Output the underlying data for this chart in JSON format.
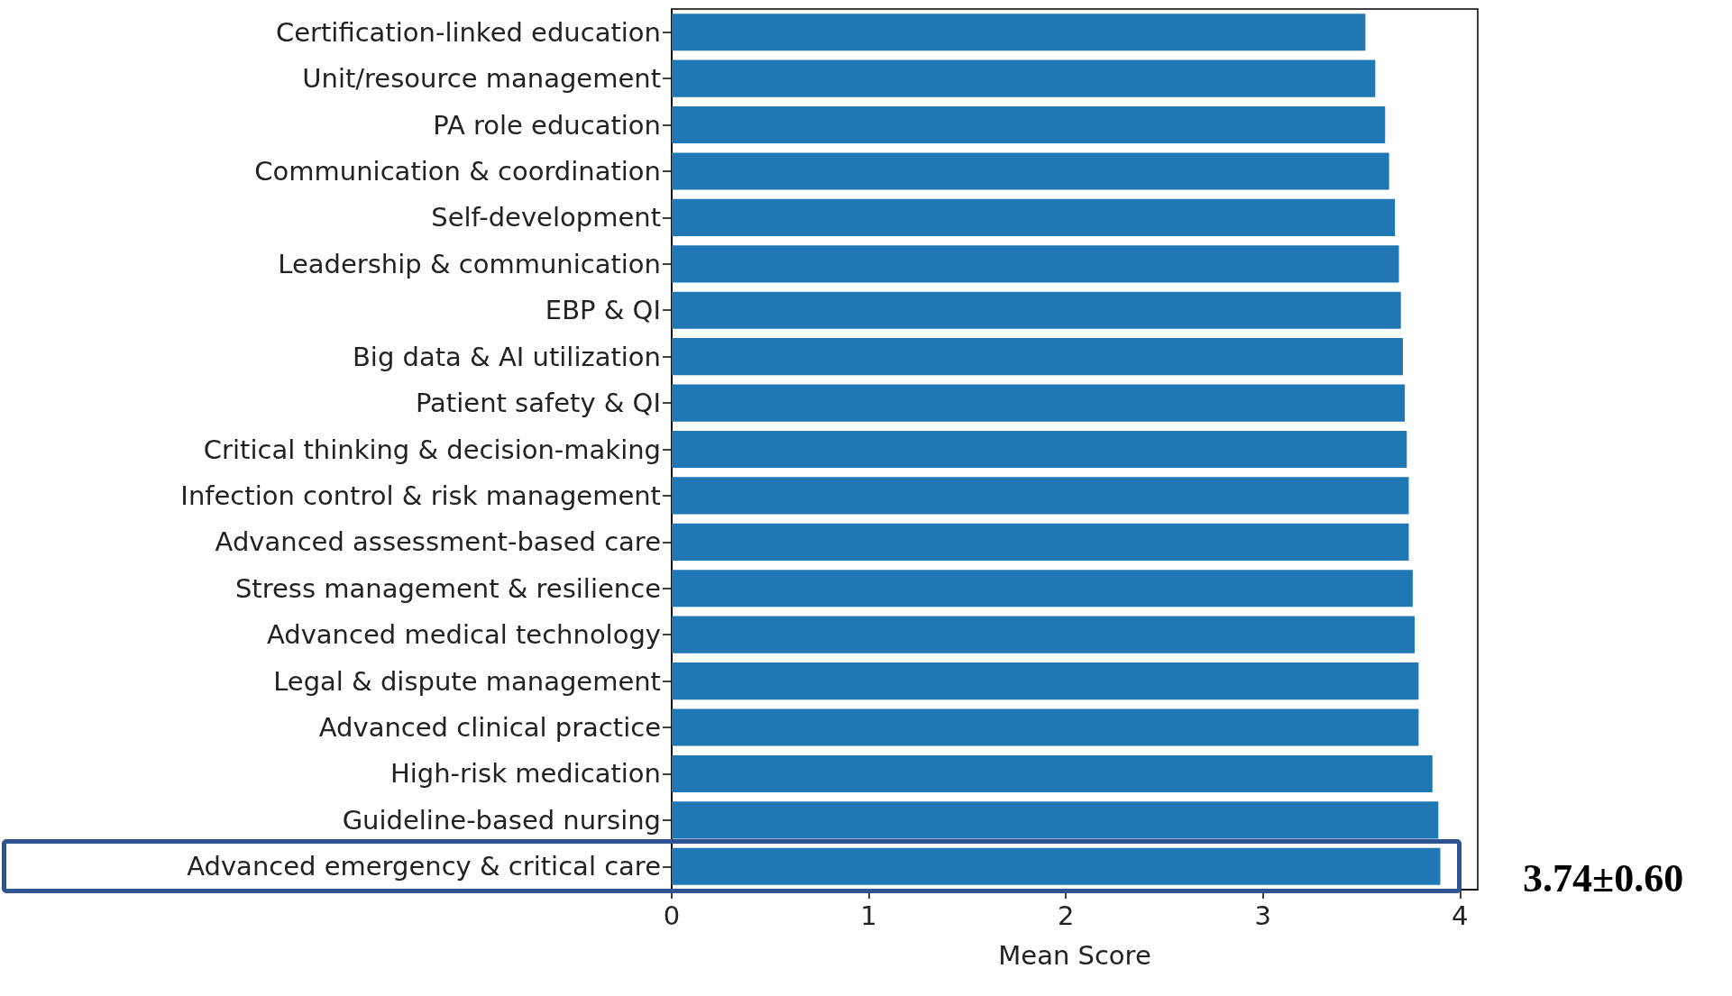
{
  "chart_data": {
    "type": "bar",
    "orientation": "horizontal",
    "xlabel": "Mean Score",
    "categories": [
      "Certification-linked education",
      "Unit/resource management",
      "PA role education",
      "Communication & coordination",
      "Self-development",
      "Leadership & communication",
      "EBP & QI",
      "Big data & AI utilization",
      "Patient safety & QI",
      "Critical thinking & decision-making",
      "Infection control & risk management",
      "Advanced assessment-based care",
      "Stress management & resilience",
      "Advanced medical technology",
      "Legal & dispute management",
      "Advanced clinical practice",
      "High-risk medication",
      "Guideline-based nursing",
      "Advanced emergency & critical care"
    ],
    "values": [
      3.52,
      3.57,
      3.62,
      3.64,
      3.67,
      3.69,
      3.7,
      3.71,
      3.72,
      3.73,
      3.74,
      3.74,
      3.76,
      3.77,
      3.79,
      3.79,
      3.86,
      3.89,
      3.9
    ],
    "color": "#1f77b4",
    "xlim": [
      0,
      4.09
    ],
    "xticks": [
      0,
      1,
      2,
      3,
      4
    ],
    "annotations": [
      "3.74±0.60"
    ]
  }
}
